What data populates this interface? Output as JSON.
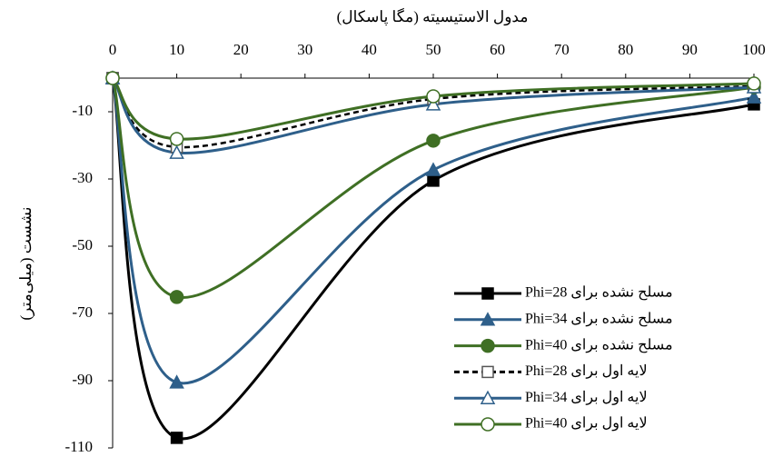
{
  "chart_data": {
    "type": "line",
    "x_label": "مدول الاستیسیته (مگا پاسکال)",
    "y_label": "نشست (میلی‌متر)",
    "x": [
      0,
      10,
      50,
      100
    ],
    "xlim": [
      0,
      100
    ],
    "xticks": [
      0,
      10,
      20,
      30,
      40,
      50,
      60,
      70,
      80,
      90,
      100
    ],
    "ylim": [
      -110,
      0
    ],
    "yticks": [
      -10,
      -30,
      -50,
      -70,
      -90,
      -110
    ],
    "grid": false,
    "legend": "lower right",
    "series": [
      {
        "name": "مسلح نشده برای Phi=28",
        "color": "#000000",
        "marker": "square",
        "filled": true,
        "dashed": false,
        "values": [
          0,
          -107,
          -30.5,
          -7.8
        ]
      },
      {
        "name": "مسلح نشده برای Phi=34",
        "color": "#2e5f8a",
        "marker": "triangle",
        "filled": true,
        "dashed": false,
        "values": [
          0,
          -90.5,
          -27.3,
          -5.7
        ]
      },
      {
        "name": "مسلح نشده برای Phi=40",
        "color": "#3f6f24",
        "marker": "circle",
        "filled": true,
        "dashed": false,
        "values": [
          0,
          -65.1,
          -18.6,
          -2.7
        ]
      },
      {
        "name": "لایه اول برای Phi=28",
        "color": "#000000",
        "marker": "square",
        "filled": false,
        "dashed": true,
        "values": [
          0,
          -20.5,
          -6.2,
          -2.4
        ]
      },
      {
        "name": "لایه اول برای Phi=34",
        "color": "#2e5f8a",
        "marker": "triangle",
        "filled": false,
        "dashed": false,
        "values": [
          0,
          -22.2,
          -7.8,
          -2.7
        ]
      },
      {
        "name": "لایه اول برای Phi=40",
        "color": "#3f6f24",
        "marker": "circle",
        "filled": false,
        "dashed": false,
        "values": [
          0,
          -18.1,
          -5.4,
          -1.6
        ]
      }
    ]
  }
}
